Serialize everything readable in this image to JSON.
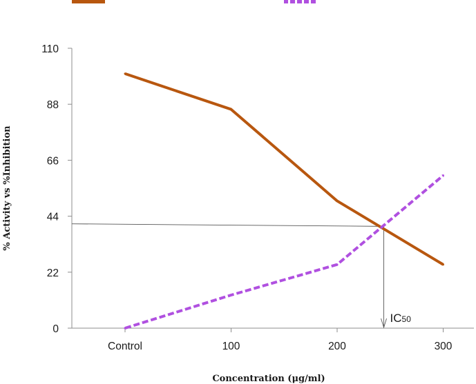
{
  "chart_data": {
    "type": "line",
    "categories": [
      "Control",
      "100",
      "200",
      "300"
    ],
    "series": [
      {
        "values": [
          100,
          86,
          50,
          25
        ],
        "color": "#b8570f",
        "style": "solid"
      },
      {
        "values": [
          0,
          13,
          25,
          60
        ],
        "color": "#b050e0",
        "style": "dashed"
      }
    ],
    "xlabel": "Concentration (μg/ml)",
    "ylabel": "% Activity vs %Inhibition",
    "ylim": [
      0,
      110
    ],
    "yticks": [
      0,
      22,
      44,
      66,
      88,
      110
    ],
    "grid": false,
    "legend": "top",
    "annotations": [
      {
        "label": "IC",
        "subscript": "50",
        "x_category_position": 2.44,
        "y": 40
      }
    ]
  }
}
